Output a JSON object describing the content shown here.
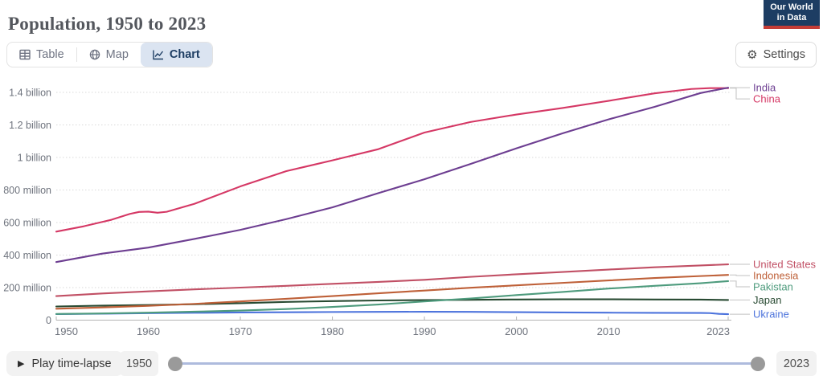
{
  "header": {
    "title": "Population, 1950 to 2023",
    "logo": {
      "line1": "Our World",
      "line2": "in Data"
    }
  },
  "toolbar": {
    "tabs": [
      {
        "label": "Table",
        "active": false
      },
      {
        "label": "Map",
        "active": false
      },
      {
        "label": "Chart",
        "active": true
      }
    ],
    "settings_label": "Settings"
  },
  "controls": {
    "play_label": "Play time-lapse",
    "start_year": "1950",
    "end_year": "2023"
  },
  "colors": {
    "logo_navy": "#1d3d63",
    "logo_red": "#c53d37",
    "active_tab_bg": "#dbe4f1",
    "slider_track": "#aebbdd"
  },
  "chart_data": {
    "type": "line",
    "title": "Population, 1950 to 2023",
    "xlabel": "",
    "ylabel": "",
    "unit": "millions of people",
    "xlim": [
      1950,
      2023
    ],
    "ylim": [
      0,
      1450
    ],
    "grid": "dotted horizontal gridlines",
    "legend_position": "right-edge entity labels",
    "x_ticks": [
      1950,
      1960,
      1970,
      1980,
      1990,
      2000,
      2010,
      2023
    ],
    "y_ticks": [
      {
        "value": 0,
        "label": "0"
      },
      {
        "value": 200,
        "label": "200 million"
      },
      {
        "value": 400,
        "label": "400 million"
      },
      {
        "value": 600,
        "label": "600 million"
      },
      {
        "value": 800,
        "label": "800 million"
      },
      {
        "value": 1000,
        "label": "1 billion"
      },
      {
        "value": 1200,
        "label": "1.2 billion"
      },
      {
        "value": 1400,
        "label": "1.4 billion"
      }
    ],
    "series": [
      {
        "name": "India",
        "color": "#6D3E91",
        "points": [
          [
            1950,
            357
          ],
          [
            1955,
            409
          ],
          [
            1960,
            446
          ],
          [
            1965,
            499
          ],
          [
            1970,
            555
          ],
          [
            1975,
            621
          ],
          [
            1980,
            693
          ],
          [
            1985,
            781
          ],
          [
            1990,
            866
          ],
          [
            1995,
            960
          ],
          [
            2000,
            1056
          ],
          [
            2005,
            1148
          ],
          [
            2010,
            1234
          ],
          [
            2015,
            1311
          ],
          [
            2020,
            1396
          ],
          [
            2023,
            1429
          ]
        ]
      },
      {
        "name": "China",
        "color": "#D53865",
        "points": [
          [
            1950,
            544
          ],
          [
            1953,
            577
          ],
          [
            1956,
            617
          ],
          [
            1958,
            653
          ],
          [
            1959,
            665
          ],
          [
            1960,
            667
          ],
          [
            1961,
            660
          ],
          [
            1962,
            666
          ],
          [
            1965,
            715
          ],
          [
            1970,
            822
          ],
          [
            1975,
            916
          ],
          [
            1980,
            982
          ],
          [
            1985,
            1051
          ],
          [
            1990,
            1153
          ],
          [
            1995,
            1218
          ],
          [
            2000,
            1264
          ],
          [
            2005,
            1304
          ],
          [
            2010,
            1348
          ],
          [
            2015,
            1394
          ],
          [
            2019,
            1421
          ],
          [
            2021,
            1426
          ],
          [
            2023,
            1426
          ]
        ]
      },
      {
        "name": "United States",
        "color": "#C15065",
        "points": [
          [
            1950,
            148
          ],
          [
            1955,
            164
          ],
          [
            1960,
            177
          ],
          [
            1965,
            189
          ],
          [
            1970,
            200
          ],
          [
            1975,
            211
          ],
          [
            1980,
            223
          ],
          [
            1985,
            235
          ],
          [
            1990,
            248
          ],
          [
            1995,
            266
          ],
          [
            2000,
            282
          ],
          [
            2005,
            296
          ],
          [
            2010,
            311
          ],
          [
            2015,
            325
          ],
          [
            2020,
            336
          ],
          [
            2023,
            343
          ]
        ]
      },
      {
        "name": "Indonesia",
        "color": "#BE6038",
        "points": [
          [
            1950,
            70
          ],
          [
            1955,
            78
          ],
          [
            1960,
            88
          ],
          [
            1965,
            100
          ],
          [
            1970,
            115
          ],
          [
            1975,
            131
          ],
          [
            1980,
            148
          ],
          [
            1985,
            165
          ],
          [
            1990,
            182
          ],
          [
            1995,
            199
          ],
          [
            2000,
            214
          ],
          [
            2005,
            229
          ],
          [
            2010,
            244
          ],
          [
            2015,
            259
          ],
          [
            2020,
            271
          ],
          [
            2023,
            278
          ]
        ]
      },
      {
        "name": "Pakistan",
        "color": "#4E9B7D",
        "points": [
          [
            1950,
            38
          ],
          [
            1955,
            41
          ],
          [
            1960,
            46
          ],
          [
            1965,
            52
          ],
          [
            1970,
            59
          ],
          [
            1975,
            68
          ],
          [
            1980,
            81
          ],
          [
            1985,
            96
          ],
          [
            1990,
            115
          ],
          [
            1995,
            133
          ],
          [
            2000,
            154
          ],
          [
            2005,
            173
          ],
          [
            2010,
            194
          ],
          [
            2015,
            211
          ],
          [
            2020,
            227
          ],
          [
            2023,
            240
          ]
        ]
      },
      {
        "name": "Japan",
        "color": "#284A32",
        "points": [
          [
            1950,
            84
          ],
          [
            1955,
            89
          ],
          [
            1960,
            93
          ],
          [
            1965,
            98
          ],
          [
            1970,
            104
          ],
          [
            1975,
            112
          ],
          [
            1980,
            117
          ],
          [
            1985,
            121
          ],
          [
            1990,
            123
          ],
          [
            1995,
            125
          ],
          [
            2000,
            127
          ],
          [
            2005,
            128
          ],
          [
            2010,
            128
          ],
          [
            2015,
            127
          ],
          [
            2020,
            126
          ],
          [
            2023,
            124
          ]
        ]
      },
      {
        "name": "Ukraine",
        "color": "#4C73DC",
        "points": [
          [
            1950,
            37
          ],
          [
            1955,
            40
          ],
          [
            1960,
            42.6
          ],
          [
            1965,
            45
          ],
          [
            1970,
            47
          ],
          [
            1975,
            48.5
          ],
          [
            1980,
            50
          ],
          [
            1985,
            50.9
          ],
          [
            1990,
            51.5
          ],
          [
            1995,
            51
          ],
          [
            2000,
            48.9
          ],
          [
            2005,
            47
          ],
          [
            2010,
            45.8
          ],
          [
            2015,
            45
          ],
          [
            2020,
            43.9
          ],
          [
            2021,
            43.2
          ],
          [
            2022,
            38.5
          ],
          [
            2023,
            36.7
          ]
        ]
      }
    ]
  }
}
